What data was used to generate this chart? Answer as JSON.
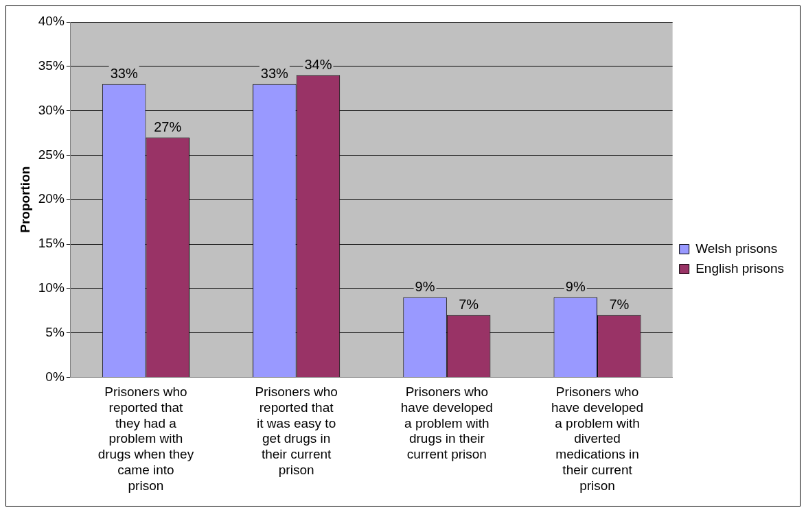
{
  "chart_data": {
    "type": "bar",
    "ylabel": "Proportion",
    "categories": [
      "Prisoners who reported that they had a problem with drugs when they came into prison",
      "Prisoners who reported that it was easy to get drugs in their current prison",
      "Prisoners who have developed a problem with drugs in their current prison",
      "Prisoners who have developed a problem with diverted medications in their current prison"
    ],
    "series": [
      {
        "name": "Welsh prisons",
        "color": "#9999ff",
        "values": [
          33,
          33,
          9,
          9
        ],
        "value_labels": [
          "33%",
          "33%",
          "9%",
          "9%"
        ]
      },
      {
        "name": "English prisons",
        "color": "#993366",
        "values": [
          27,
          34,
          7,
          7
        ],
        "value_labels": [
          "27%",
          "34%",
          "7%",
          "7%"
        ]
      }
    ],
    "ylim": [
      0,
      40
    ],
    "yticks": [
      {
        "value": 0,
        "label": "0%"
      },
      {
        "value": 5,
        "label": "5%"
      },
      {
        "value": 10,
        "label": "10%"
      },
      {
        "value": 15,
        "label": "15%"
      },
      {
        "value": 20,
        "label": "20%"
      },
      {
        "value": 25,
        "label": "25%"
      },
      {
        "value": 30,
        "label": "30%"
      },
      {
        "value": 35,
        "label": "35%"
      },
      {
        "value": 40,
        "label": "40%"
      }
    ],
    "grid": "y",
    "legend": "right"
  }
}
